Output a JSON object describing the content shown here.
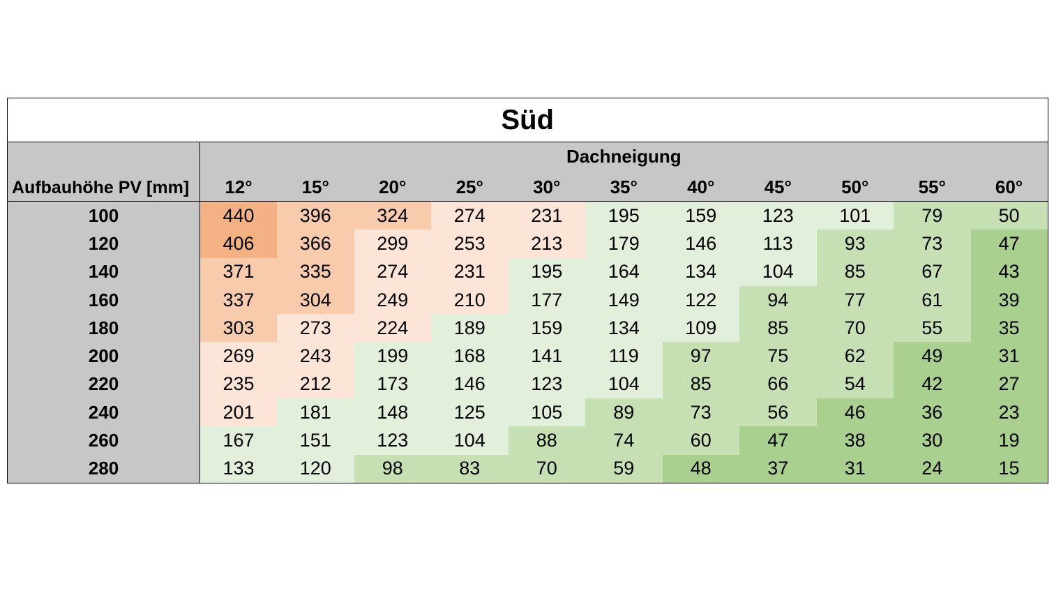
{
  "chart_data": {
    "type": "heatmap",
    "title": "Süd",
    "row_axis_label": "Aufbauhöhe PV [mm]",
    "column_axis_label": "Dachneigung",
    "columns": [
      "12°",
      "15°",
      "20°",
      "25°",
      "30°",
      "35°",
      "40°",
      "45°",
      "50°",
      "55°",
      "60°"
    ],
    "rows": [
      "100",
      "120",
      "140",
      "160",
      "180",
      "200",
      "220",
      "240",
      "260",
      "280"
    ],
    "values": [
      [
        440,
        396,
        324,
        274,
        231,
        195,
        159,
        123,
        101,
        79,
        50
      ],
      [
        406,
        366,
        299,
        253,
        213,
        179,
        146,
        113,
        93,
        73,
        47
      ],
      [
        371,
        335,
        274,
        231,
        195,
        164,
        134,
        104,
        85,
        67,
        43
      ],
      [
        337,
        304,
        249,
        210,
        177,
        149,
        122,
        94,
        77,
        61,
        39
      ],
      [
        303,
        273,
        224,
        189,
        159,
        134,
        109,
        85,
        70,
        55,
        35
      ],
      [
        269,
        243,
        199,
        168,
        141,
        119,
        97,
        75,
        62,
        49,
        31
      ],
      [
        235,
        212,
        173,
        146,
        123,
        104,
        85,
        66,
        54,
        42,
        27
      ],
      [
        201,
        181,
        148,
        125,
        105,
        89,
        73,
        56,
        46,
        36,
        23
      ],
      [
        167,
        151,
        123,
        104,
        88,
        74,
        60,
        47,
        38,
        30,
        19
      ],
      [
        133,
        120,
        98,
        83,
        70,
        59,
        48,
        37,
        31,
        24,
        15
      ]
    ],
    "color_bands": [
      {
        "min": 400,
        "color": "#f4b183"
      },
      {
        "min": 300,
        "color": "#f8cbad"
      },
      {
        "min": 200,
        "color": "#fce4d6"
      },
      {
        "min": 100,
        "color": "#e2efda"
      },
      {
        "min": 50,
        "color": "#c6e0b4"
      },
      {
        "min": 0,
        "color": "#a9d08e"
      }
    ],
    "header_background": "#c7c7c7"
  }
}
